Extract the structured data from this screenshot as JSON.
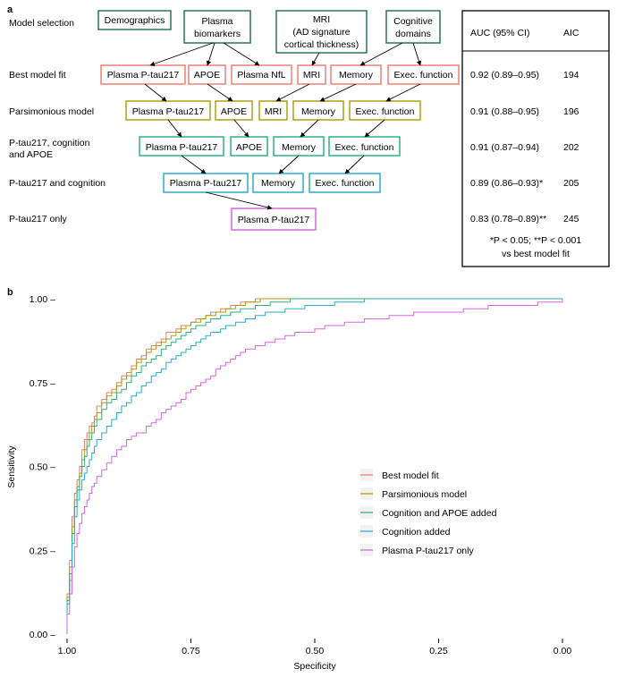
{
  "panel_a": {
    "label": "a",
    "row_labels": [
      "Model selection",
      "Best model fit",
      "Parsimonious model",
      "P-tau217, cognition",
      "and APOE",
      "P-tau217 and cognition",
      "P-tau217 only"
    ],
    "top_boxes": {
      "demographics": [
        "Demographics"
      ],
      "plasma": [
        "Plasma",
        "biomarkers"
      ],
      "mri": [
        "MRI",
        "(AD signature",
        "cortical thickness)"
      ],
      "cognitive": [
        "Cognitive",
        "domains"
      ]
    },
    "models": {
      "best": [
        "Plasma P-tau217",
        "APOE",
        "Plasma NfL",
        "MRI",
        "Memory",
        "Exec. function"
      ],
      "parsimonious": [
        "Plasma P-tau217",
        "APOE",
        "MRI",
        "Memory",
        "Exec. function"
      ],
      "cog_apoe": [
        "Plasma P-tau217",
        "APOE",
        "Memory",
        "Exec. function"
      ],
      "cog": [
        "Plasma P-tau217",
        "Memory",
        "Exec. function"
      ],
      "ptau": [
        "Plasma P-tau217"
      ]
    },
    "table": {
      "col_auc": "AUC (95% CI)",
      "col_aic": "AIC",
      "rows": [
        {
          "auc": "0.92 (0.89–0.95)",
          "aic": "194"
        },
        {
          "auc": "0.91 (0.88–0.95)",
          "aic": "196"
        },
        {
          "auc": "0.91 (0.87–0.94)",
          "aic": "202"
        },
        {
          "auc": "0.89 (0.86–0.93)*",
          "aic": "205"
        },
        {
          "auc": "0.83 (0.78–0.89)**",
          "aic": "245"
        }
      ],
      "footnote_1": "*P < 0.05; **P < 0.001",
      "footnote_2": "vs best model fit"
    }
  },
  "colors": {
    "green_dark": "#1c6b48",
    "best": "#e8776c",
    "parsimonious": "#a89a00",
    "cog_apoe": "#1fae7a",
    "cog": "#1ea6c9",
    "ptau": "#d25ee0"
  },
  "chart_data": {
    "panel_label": "b",
    "type": "line",
    "xlabel": "Specificity",
    "ylabel": "Sensitivity",
    "x_reversed": true,
    "xlim": [
      1.0,
      0.0
    ],
    "ylim": [
      0.0,
      1.0
    ],
    "x_ticks": [
      "1.00",
      "0.75",
      "0.50",
      "0.25",
      "0.00"
    ],
    "y_ticks": [
      "0.00 –",
      "0.25 –",
      "0.50 –",
      "0.75 –",
      "1.00 –"
    ],
    "grid": false,
    "legend_position": "right",
    "series": [
      {
        "name": "Best model fit",
        "color": "#e8776c",
        "x": [
          1,
          1,
          0.995,
          0.99,
          0.985,
          0.98,
          0.975,
          0.97,
          0.965,
          0.96,
          0.955,
          0.95,
          0.945,
          0.94,
          0.93,
          0.92,
          0.91,
          0.9,
          0.89,
          0.88,
          0.87,
          0.86,
          0.85,
          0.84,
          0.83,
          0.82,
          0.81,
          0.8,
          0.79,
          0.78,
          0.77,
          0.76,
          0.75,
          0.74,
          0.73,
          0.72,
          0.71,
          0.7,
          0.69,
          0.68,
          0.67,
          0.66,
          0.65,
          0.64,
          0.63,
          0.62,
          0.61,
          0.6,
          0.59,
          0.58,
          0.57,
          0.56,
          0.55,
          0.54,
          0.5,
          0.4,
          0.3,
          0.2,
          0.1,
          0
        ],
        "y": [
          0,
          0.12,
          0.22,
          0.35,
          0.42,
          0.46,
          0.5,
          0.55,
          0.58,
          0.6,
          0.62,
          0.63,
          0.65,
          0.68,
          0.7,
          0.72,
          0.73,
          0.75,
          0.77,
          0.78,
          0.8,
          0.82,
          0.83,
          0.85,
          0.86,
          0.87,
          0.88,
          0.9,
          0.9,
          0.91,
          0.92,
          0.92,
          0.93,
          0.94,
          0.94,
          0.95,
          0.96,
          0.96,
          0.97,
          0.97,
          0.98,
          0.98,
          0.99,
          0.99,
          0.99,
          1,
          1,
          1,
          1,
          1,
          1,
          1,
          1,
          1,
          1,
          1,
          1,
          1,
          1,
          1
        ]
      },
      {
        "name": "Parsimonious model",
        "color": "#a89a00",
        "x": [
          1,
          1,
          0.995,
          0.99,
          0.985,
          0.98,
          0.975,
          0.97,
          0.965,
          0.96,
          0.955,
          0.95,
          0.945,
          0.94,
          0.93,
          0.92,
          0.91,
          0.9,
          0.89,
          0.88,
          0.87,
          0.86,
          0.85,
          0.84,
          0.83,
          0.82,
          0.81,
          0.8,
          0.79,
          0.78,
          0.77,
          0.76,
          0.75,
          0.74,
          0.73,
          0.72,
          0.71,
          0.7,
          0.69,
          0.68,
          0.67,
          0.66,
          0.65,
          0.64,
          0.63,
          0.62,
          0.61,
          0.6,
          0.59,
          0.58,
          0.57,
          0.56,
          0.55,
          0.5,
          0.4,
          0.3,
          0.2,
          0.1,
          0
        ],
        "y": [
          0,
          0.11,
          0.2,
          0.32,
          0.4,
          0.44,
          0.48,
          0.52,
          0.55,
          0.58,
          0.6,
          0.62,
          0.64,
          0.66,
          0.69,
          0.71,
          0.72,
          0.74,
          0.76,
          0.77,
          0.79,
          0.81,
          0.82,
          0.84,
          0.85,
          0.86,
          0.87,
          0.88,
          0.89,
          0.9,
          0.91,
          0.92,
          0.93,
          0.93,
          0.94,
          0.95,
          0.95,
          0.96,
          0.96,
          0.97,
          0.97,
          0.98,
          0.98,
          0.99,
          0.99,
          0.99,
          1,
          1,
          1,
          1,
          1,
          1,
          1,
          1,
          1,
          1,
          1,
          1,
          1
        ]
      },
      {
        "name": "Cognition and APOE added",
        "color": "#1fae7a",
        "x": [
          1,
          1,
          0.995,
          0.99,
          0.985,
          0.98,
          0.975,
          0.97,
          0.965,
          0.96,
          0.955,
          0.95,
          0.945,
          0.94,
          0.93,
          0.92,
          0.91,
          0.9,
          0.89,
          0.88,
          0.87,
          0.86,
          0.85,
          0.84,
          0.83,
          0.82,
          0.81,
          0.8,
          0.79,
          0.78,
          0.77,
          0.76,
          0.75,
          0.74,
          0.73,
          0.72,
          0.71,
          0.7,
          0.69,
          0.68,
          0.67,
          0.66,
          0.65,
          0.64,
          0.63,
          0.62,
          0.61,
          0.6,
          0.59,
          0.58,
          0.57,
          0.56,
          0.55,
          0.54,
          0.53,
          0.52,
          0.51,
          0.5,
          0.4,
          0.3,
          0.2,
          0.1,
          0
        ],
        "y": [
          0,
          0.1,
          0.18,
          0.3,
          0.38,
          0.43,
          0.47,
          0.5,
          0.53,
          0.56,
          0.58,
          0.6,
          0.62,
          0.64,
          0.67,
          0.69,
          0.7,
          0.72,
          0.73,
          0.75,
          0.77,
          0.78,
          0.8,
          0.81,
          0.82,
          0.83,
          0.85,
          0.86,
          0.87,
          0.88,
          0.89,
          0.9,
          0.91,
          0.92,
          0.92,
          0.93,
          0.94,
          0.94,
          0.95,
          0.95,
          0.96,
          0.96,
          0.97,
          0.97,
          0.97,
          0.98,
          0.98,
          0.98,
          0.99,
          0.99,
          0.99,
          0.99,
          1,
          1,
          1,
          1,
          1,
          1,
          1,
          1,
          1,
          1,
          1
        ]
      },
      {
        "name": "Cognition added",
        "color": "#1ea6c9",
        "x": [
          1,
          1,
          0.995,
          0.99,
          0.985,
          0.98,
          0.975,
          0.97,
          0.965,
          0.96,
          0.955,
          0.95,
          0.945,
          0.94,
          0.93,
          0.92,
          0.91,
          0.9,
          0.89,
          0.88,
          0.87,
          0.86,
          0.85,
          0.84,
          0.83,
          0.82,
          0.81,
          0.8,
          0.79,
          0.78,
          0.77,
          0.76,
          0.75,
          0.74,
          0.73,
          0.72,
          0.71,
          0.7,
          0.69,
          0.68,
          0.67,
          0.66,
          0.65,
          0.64,
          0.63,
          0.62,
          0.61,
          0.6,
          0.58,
          0.56,
          0.54,
          0.52,
          0.5,
          0.48,
          0.46,
          0.44,
          0.42,
          0.4,
          0.3,
          0.2,
          0.1,
          0
        ],
        "y": [
          0,
          0.09,
          0.16,
          0.27,
          0.35,
          0.4,
          0.43,
          0.46,
          0.48,
          0.5,
          0.52,
          0.54,
          0.56,
          0.58,
          0.6,
          0.62,
          0.64,
          0.66,
          0.68,
          0.69,
          0.71,
          0.72,
          0.74,
          0.75,
          0.77,
          0.78,
          0.79,
          0.81,
          0.82,
          0.83,
          0.84,
          0.85,
          0.86,
          0.87,
          0.88,
          0.89,
          0.9,
          0.9,
          0.91,
          0.92,
          0.92,
          0.93,
          0.93,
          0.94,
          0.94,
          0.95,
          0.95,
          0.96,
          0.96,
          0.97,
          0.97,
          0.98,
          0.98,
          0.98,
          0.99,
          0.99,
          0.99,
          1,
          1,
          1,
          1,
          1
        ]
      },
      {
        "name": "Plasma P-tau217 only",
        "color": "#d25ee0",
        "x": [
          1,
          1,
          0.995,
          0.99,
          0.985,
          0.98,
          0.975,
          0.97,
          0.965,
          0.96,
          0.955,
          0.95,
          0.945,
          0.94,
          0.93,
          0.92,
          0.91,
          0.9,
          0.89,
          0.88,
          0.87,
          0.86,
          0.85,
          0.84,
          0.83,
          0.82,
          0.81,
          0.8,
          0.79,
          0.78,
          0.77,
          0.76,
          0.75,
          0.74,
          0.73,
          0.72,
          0.71,
          0.7,
          0.69,
          0.68,
          0.67,
          0.66,
          0.65,
          0.64,
          0.62,
          0.6,
          0.58,
          0.56,
          0.54,
          0.52,
          0.5,
          0.48,
          0.46,
          0.44,
          0.42,
          0.4,
          0.35,
          0.3,
          0.25,
          0.2,
          0.15,
          0.1,
          0.05,
          0
        ],
        "y": [
          0,
          0.06,
          0.12,
          0.2,
          0.26,
          0.3,
          0.33,
          0.36,
          0.38,
          0.4,
          0.42,
          0.44,
          0.45,
          0.47,
          0.49,
          0.51,
          0.53,
          0.55,
          0.56,
          0.58,
          0.59,
          0.6,
          0.6,
          0.62,
          0.63,
          0.64,
          0.66,
          0.67,
          0.68,
          0.69,
          0.7,
          0.72,
          0.73,
          0.74,
          0.75,
          0.76,
          0.77,
          0.79,
          0.8,
          0.81,
          0.82,
          0.83,
          0.84,
          0.85,
          0.86,
          0.87,
          0.88,
          0.89,
          0.9,
          0.9,
          0.91,
          0.92,
          0.92,
          0.93,
          0.93,
          0.94,
          0.95,
          0.96,
          0.96,
          0.97,
          0.98,
          0.98,
          0.99,
          1
        ]
      }
    ]
  }
}
